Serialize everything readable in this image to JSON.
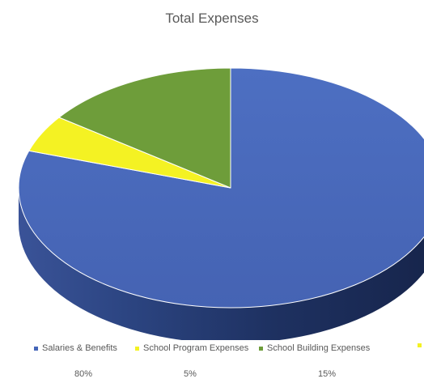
{
  "chart_data": {
    "type": "pie",
    "style": "3d",
    "title": "Total Expenses",
    "legend_position": "bottom",
    "categories": [
      "Salaries & Benefits",
      "School Program Expenses",
      "School Building Expenses"
    ],
    "values": [
      80,
      5,
      15
    ],
    "value_labels": [
      "80%",
      "5%",
      "15%"
    ],
    "colors": [
      "#4566B8",
      "#F4F223",
      "#6E9D3A"
    ],
    "extra_legend_color": "#F4F223"
  }
}
